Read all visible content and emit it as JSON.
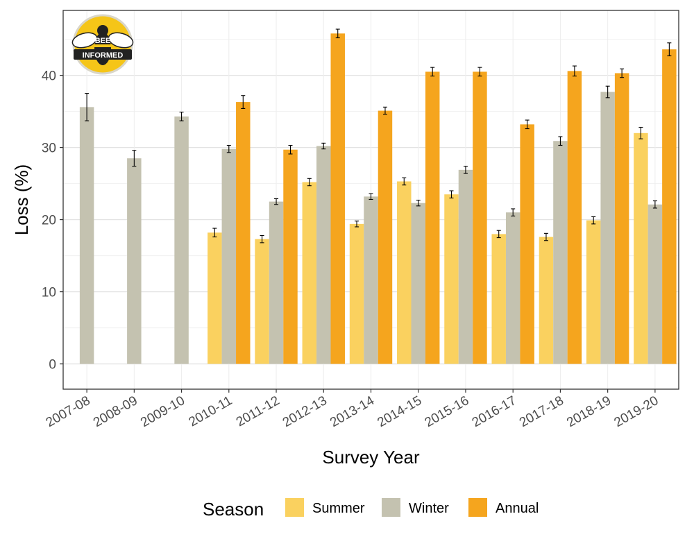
{
  "chart_data": {
    "type": "bar",
    "xlabel": "Survey Year",
    "ylabel": "Loss (%)",
    "ylim": [
      -3.5,
      49
    ],
    "yticks": [
      0,
      10,
      20,
      30,
      40
    ],
    "grid": true,
    "legend_placement": "bottom",
    "legend_title": "Season",
    "categories": [
      "2007-08",
      "2008-09",
      "2009-10",
      "2010-11",
      "2011-12",
      "2012-13",
      "2013-14",
      "2014-15",
      "2015-16",
      "2016-17",
      "2017-18",
      "2018-19",
      "2019-20"
    ],
    "series": [
      {
        "name": "Summer",
        "color": "#fad15f",
        "values": [
          null,
          null,
          null,
          18.2,
          17.3,
          25.2,
          19.4,
          25.3,
          23.5,
          18.0,
          17.6,
          19.9,
          32.0
        ],
        "err": [
          null,
          null,
          null,
          0.6,
          0.5,
          0.5,
          0.4,
          0.5,
          0.5,
          0.5,
          0.5,
          0.5,
          0.8
        ]
      },
      {
        "name": "Winter",
        "color": "#c4c2b0",
        "values": [
          35.6,
          28.5,
          34.3,
          29.8,
          22.5,
          30.2,
          23.2,
          22.3,
          26.9,
          21.0,
          30.9,
          37.7,
          22.1
        ],
        "err": [
          1.9,
          1.1,
          0.6,
          0.5,
          0.4,
          0.4,
          0.4,
          0.4,
          0.5,
          0.5,
          0.6,
          0.8,
          0.5
        ]
      },
      {
        "name": "Annual",
        "color": "#f5a51e",
        "values": [
          null,
          null,
          null,
          36.3,
          29.7,
          45.8,
          35.1,
          40.5,
          40.5,
          33.2,
          40.6,
          40.3,
          43.6
        ],
        "err": [
          null,
          null,
          null,
          0.9,
          0.6,
          0.6,
          0.5,
          0.6,
          0.6,
          0.6,
          0.7,
          0.6,
          0.9
        ]
      }
    ]
  },
  "logo": {
    "line1": "BEE",
    "line2": "INFORMED"
  }
}
